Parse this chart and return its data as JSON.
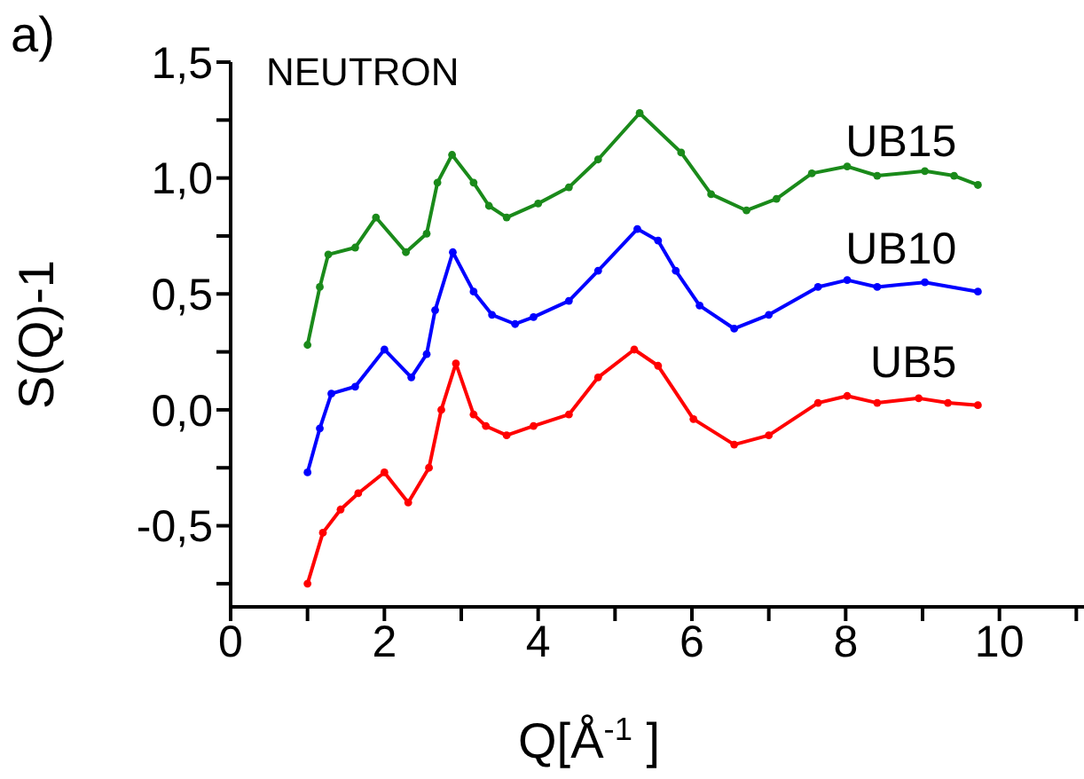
{
  "chart_data": {
    "type": "line",
    "xlabel": "Q[Å$^{-1}$]",
    "ylabel": "S(Q)-1",
    "annotations": [
      "a)",
      "NEUTRON"
    ],
    "xlim": [
      0,
      11.1
    ],
    "ylim": [
      -0.85,
      1.5
    ],
    "xticks": [
      0,
      {
        "value": 1,
        "label": null
      },
      2,
      {
        "value": 3,
        "label": null
      },
      4,
      {
        "value": 5,
        "label": null
      },
      6,
      {
        "value": 7,
        "label": null
      },
      8,
      {
        "value": 9,
        "label": null
      },
      10,
      {
        "value": 11,
        "label": null
      }
    ],
    "yticks": [
      {
        "value": -0.75,
        "label": null
      },
      {
        "value": -0.5,
        "label": "-0,5"
      },
      {
        "value": -0.25,
        "label": null
      },
      {
        "value": 0,
        "label": "0,0"
      },
      {
        "value": 0.25,
        "label": null
      },
      {
        "value": 0.5,
        "label": "0,5"
      },
      {
        "value": 0.75,
        "label": null
      },
      {
        "value": 1,
        "label": "1,0"
      },
      {
        "value": 1.25,
        "label": null
      },
      {
        "value": 1.5,
        "label": "1,5"
      }
    ],
    "marker": "circle",
    "line_style": "solid",
    "grid": false,
    "legend": false,
    "series": [
      {
        "name": "UB15",
        "color": "#1a8a1a",
        "x": [
          1.0,
          1.16,
          1.27,
          1.62,
          1.89,
          2.28,
          2.55,
          2.69,
          2.88,
          3.16,
          3.36,
          3.59,
          4.0,
          4.4,
          4.78,
          5.32,
          5.86,
          6.25,
          6.71,
          7.1,
          7.56,
          8.02,
          8.41,
          9.03,
          9.41,
          9.72
        ],
        "values": [
          0.28,
          0.53,
          0.67,
          0.7,
          0.83,
          0.68,
          0.76,
          0.98,
          1.1,
          0.98,
          0.88,
          0.83,
          0.89,
          0.96,
          1.08,
          1.28,
          1.11,
          0.93,
          0.86,
          0.91,
          1.02,
          1.05,
          1.01,
          1.03,
          1.01,
          0.97
        ]
      },
      {
        "name": "UB10",
        "color": "#0000ff",
        "x": [
          1.0,
          1.16,
          1.31,
          1.62,
          2.0,
          2.35,
          2.55,
          2.66,
          2.89,
          3.16,
          3.4,
          3.7,
          3.94,
          4.4,
          4.78,
          5.29,
          5.56,
          5.79,
          6.1,
          6.55,
          7.0,
          7.64,
          8.02,
          8.41,
          9.03,
          9.72
        ],
        "values": [
          -0.27,
          -0.08,
          0.07,
          0.1,
          0.26,
          0.14,
          0.24,
          0.43,
          0.68,
          0.51,
          0.41,
          0.37,
          0.4,
          0.47,
          0.6,
          0.78,
          0.73,
          0.6,
          0.45,
          0.35,
          0.41,
          0.53,
          0.56,
          0.53,
          0.55,
          0.51
        ]
      },
      {
        "name": "UB5",
        "color": "#ff0000",
        "x": [
          1.0,
          1.2,
          1.43,
          1.66,
          2.0,
          2.31,
          2.58,
          2.74,
          2.93,
          3.16,
          3.32,
          3.59,
          3.94,
          4.4,
          4.78,
          5.25,
          5.56,
          6.02,
          6.55,
          7.0,
          7.64,
          8.02,
          8.41,
          8.95,
          9.33,
          9.72
        ],
        "values": [
          -0.75,
          -0.53,
          -0.43,
          -0.36,
          -0.27,
          -0.4,
          -0.25,
          0.0,
          0.2,
          -0.02,
          -0.07,
          -0.11,
          -0.07,
          -0.02,
          0.14,
          0.26,
          0.19,
          -0.04,
          -0.15,
          -0.11,
          0.03,
          0.06,
          0.03,
          0.05,
          0.03,
          0.02
        ]
      }
    ]
  }
}
